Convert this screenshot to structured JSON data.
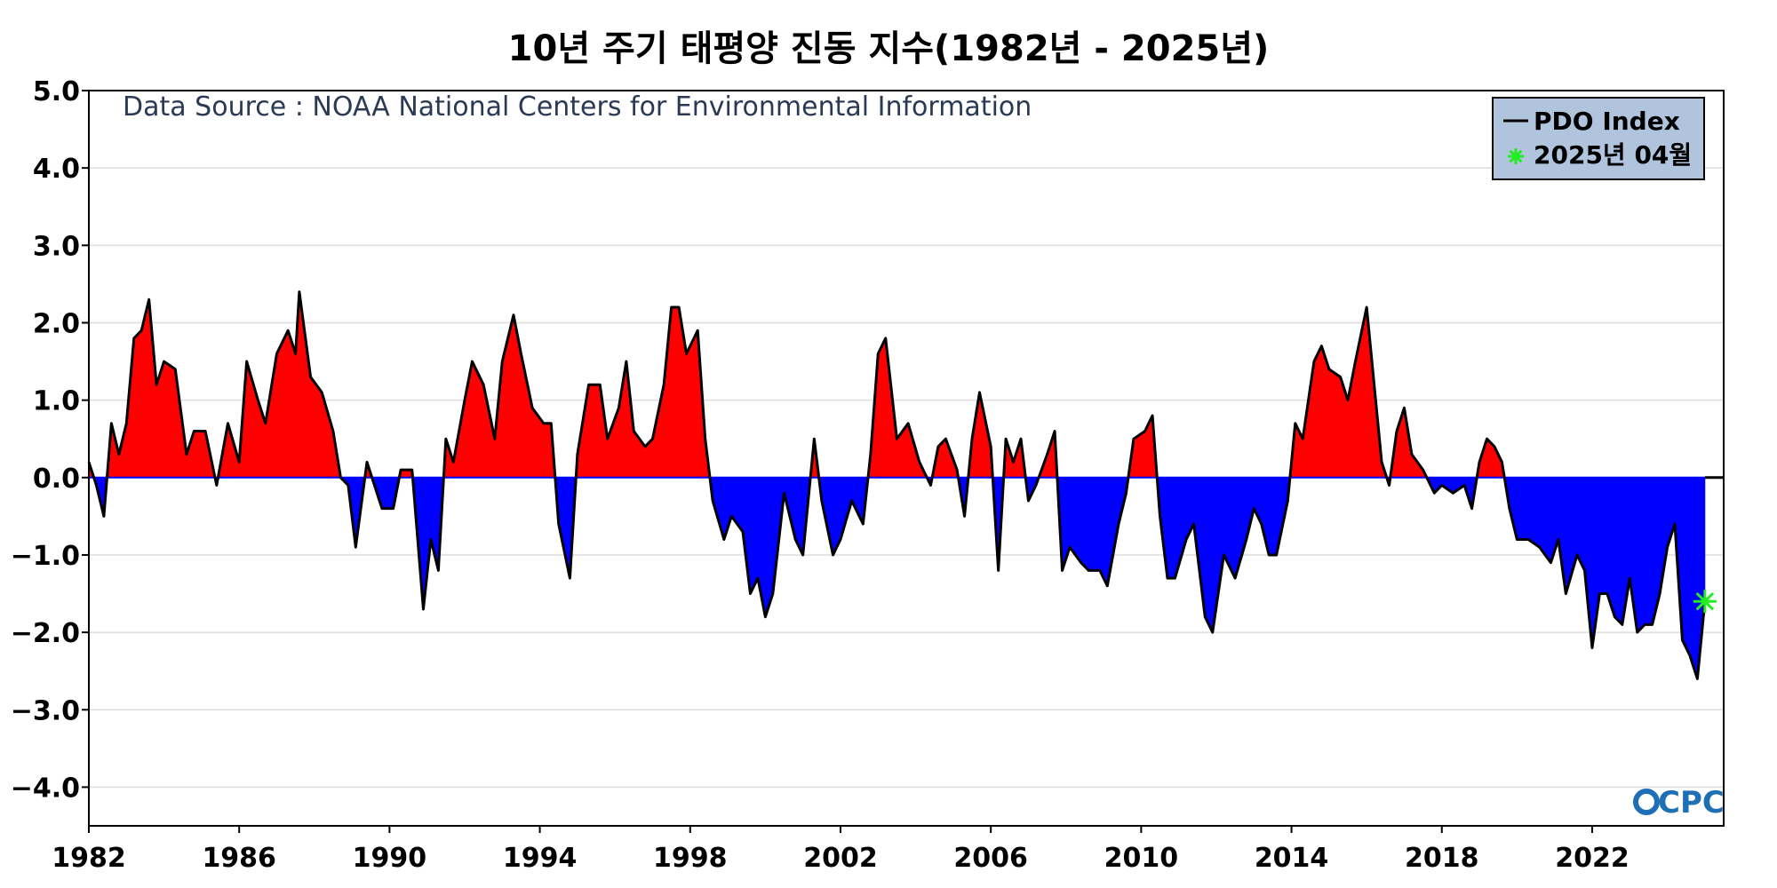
{
  "chart_data": {
    "type": "area",
    "title": "10년 주기 태평양 진동 지수(1982년 - 2025년)",
    "source_note": "Data Source : NOAA National Centers for Environmental Information",
    "xlim": [
      1982,
      2025.5
    ],
    "ylim": [
      -4.5,
      5.0
    ],
    "grid": true,
    "legend_position": "top-right",
    "legend": [
      "PDO Index",
      "2025년 04월"
    ],
    "logo_text": "CPC",
    "x_ticks": [
      1982,
      1986,
      1990,
      1994,
      1998,
      2002,
      2006,
      2010,
      2014,
      2018,
      2022
    ],
    "x_tick_labels": [
      "1982",
      "1986",
      "1990",
      "1994",
      "1998",
      "2002",
      "2006",
      "2010",
      "2014",
      "2018",
      "2022"
    ],
    "y_ticks": [
      5,
      4,
      3,
      2,
      1,
      0,
      -1,
      -2,
      -3,
      -4
    ],
    "y_tick_labels": [
      "5.0",
      "4.0",
      "3.0",
      "2.0",
      "1.0",
      "0.0",
      "−1.0",
      "−2.0",
      "−3.0",
      "−4.0"
    ],
    "colors": {
      "positive": "#ff0000",
      "negative": "#0000ff",
      "line": "#000000",
      "marker": "#22ee22",
      "zero_line": "#000000",
      "grid": "#dddddd"
    },
    "series": [
      {
        "name": "PDO Index",
        "points": [
          [
            1982.0,
            0.2
          ],
          [
            1982.2,
            -0.1
          ],
          [
            1982.4,
            -0.5
          ],
          [
            1982.6,
            0.7
          ],
          [
            1982.8,
            0.3
          ],
          [
            1983.0,
            0.7
          ],
          [
            1983.2,
            1.8
          ],
          [
            1983.4,
            1.9
          ],
          [
            1983.6,
            2.3
          ],
          [
            1983.8,
            1.2
          ],
          [
            1984.0,
            1.5
          ],
          [
            1984.3,
            1.4
          ],
          [
            1984.6,
            0.3
          ],
          [
            1984.8,
            0.6
          ],
          [
            1985.1,
            0.6
          ],
          [
            1985.4,
            -0.1
          ],
          [
            1985.7,
            0.7
          ],
          [
            1986.0,
            0.2
          ],
          [
            1986.2,
            1.5
          ],
          [
            1986.5,
            1.0
          ],
          [
            1986.7,
            0.7
          ],
          [
            1987.0,
            1.6
          ],
          [
            1987.3,
            1.9
          ],
          [
            1987.5,
            1.6
          ],
          [
            1987.6,
            2.4
          ],
          [
            1987.9,
            1.3
          ],
          [
            1988.2,
            1.1
          ],
          [
            1988.5,
            0.6
          ],
          [
            1988.7,
            0.0
          ],
          [
            1988.9,
            -0.1
          ],
          [
            1989.1,
            -0.9
          ],
          [
            1989.4,
            0.2
          ],
          [
            1989.6,
            -0.1
          ],
          [
            1989.8,
            -0.4
          ],
          [
            1990.1,
            -0.4
          ],
          [
            1990.3,
            0.1
          ],
          [
            1990.6,
            0.1
          ],
          [
            1990.9,
            -1.7
          ],
          [
            1991.1,
            -0.8
          ],
          [
            1991.3,
            -1.2
          ],
          [
            1991.5,
            0.5
          ],
          [
            1991.7,
            0.2
          ],
          [
            1992.0,
            1.0
          ],
          [
            1992.2,
            1.5
          ],
          [
            1992.5,
            1.2
          ],
          [
            1992.8,
            0.5
          ],
          [
            1993.0,
            1.5
          ],
          [
            1993.3,
            2.1
          ],
          [
            1993.5,
            1.6
          ],
          [
            1993.8,
            0.9
          ],
          [
            1994.1,
            0.7
          ],
          [
            1994.3,
            0.7
          ],
          [
            1994.5,
            -0.6
          ],
          [
            1994.8,
            -1.3
          ],
          [
            1995.0,
            0.3
          ],
          [
            1995.3,
            1.2
          ],
          [
            1995.6,
            1.2
          ],
          [
            1995.8,
            0.5
          ],
          [
            1996.1,
            0.9
          ],
          [
            1996.3,
            1.5
          ],
          [
            1996.5,
            0.6
          ],
          [
            1996.8,
            0.4
          ],
          [
            1997.0,
            0.5
          ],
          [
            1997.3,
            1.2
          ],
          [
            1997.5,
            2.2
          ],
          [
            1997.7,
            2.2
          ],
          [
            1997.9,
            1.6
          ],
          [
            1998.2,
            1.9
          ],
          [
            1998.4,
            0.5
          ],
          [
            1998.6,
            -0.3
          ],
          [
            1998.9,
            -0.8
          ],
          [
            1999.1,
            -0.5
          ],
          [
            1999.4,
            -0.7
          ],
          [
            1999.6,
            -1.5
          ],
          [
            1999.8,
            -1.3
          ],
          [
            2000.0,
            -1.8
          ],
          [
            2000.2,
            -1.5
          ],
          [
            2000.5,
            -0.2
          ],
          [
            2000.8,
            -0.8
          ],
          [
            2001.0,
            -1.0
          ],
          [
            2001.3,
            0.5
          ],
          [
            2001.5,
            -0.3
          ],
          [
            2001.8,
            -1.0
          ],
          [
            2002.0,
            -0.8
          ],
          [
            2002.3,
            -0.3
          ],
          [
            2002.6,
            -0.6
          ],
          [
            2002.8,
            0.3
          ],
          [
            2003.0,
            1.6
          ],
          [
            2003.2,
            1.8
          ],
          [
            2003.5,
            0.5
          ],
          [
            2003.8,
            0.7
          ],
          [
            2004.1,
            0.2
          ],
          [
            2004.4,
            -0.1
          ],
          [
            2004.6,
            0.4
          ],
          [
            2004.8,
            0.5
          ],
          [
            2005.1,
            0.1
          ],
          [
            2005.3,
            -0.5
          ],
          [
            2005.5,
            0.5
          ],
          [
            2005.7,
            1.1
          ],
          [
            2006.0,
            0.4
          ],
          [
            2006.2,
            -1.2
          ],
          [
            2006.4,
            0.5
          ],
          [
            2006.6,
            0.2
          ],
          [
            2006.8,
            0.5
          ],
          [
            2007.0,
            -0.3
          ],
          [
            2007.2,
            -0.1
          ],
          [
            2007.5,
            0.3
          ],
          [
            2007.7,
            0.6
          ],
          [
            2007.9,
            -1.2
          ],
          [
            2008.1,
            -0.9
          ],
          [
            2008.4,
            -1.1
          ],
          [
            2008.6,
            -1.2
          ],
          [
            2008.9,
            -1.2
          ],
          [
            2009.1,
            -1.4
          ],
          [
            2009.4,
            -0.6
          ],
          [
            2009.6,
            -0.2
          ],
          [
            2009.8,
            0.5
          ],
          [
            2010.1,
            0.6
          ],
          [
            2010.3,
            0.8
          ],
          [
            2010.5,
            -0.5
          ],
          [
            2010.7,
            -1.3
          ],
          [
            2010.9,
            -1.3
          ],
          [
            2011.2,
            -0.8
          ],
          [
            2011.4,
            -0.6
          ],
          [
            2011.7,
            -1.8
          ],
          [
            2011.9,
            -2.0
          ],
          [
            2012.2,
            -1.0
          ],
          [
            2012.5,
            -1.3
          ],
          [
            2012.8,
            -0.8
          ],
          [
            2013.0,
            -0.4
          ],
          [
            2013.2,
            -0.6
          ],
          [
            2013.4,
            -1.0
          ],
          [
            2013.6,
            -1.0
          ],
          [
            2013.9,
            -0.3
          ],
          [
            2014.1,
            0.7
          ],
          [
            2014.3,
            0.5
          ],
          [
            2014.6,
            1.5
          ],
          [
            2014.8,
            1.7
          ],
          [
            2015.0,
            1.4
          ],
          [
            2015.3,
            1.3
          ],
          [
            2015.5,
            1.0
          ],
          [
            2015.7,
            1.5
          ],
          [
            2016.0,
            2.2
          ],
          [
            2016.2,
            1.2
          ],
          [
            2016.4,
            0.2
          ],
          [
            2016.6,
            -0.1
          ],
          [
            2016.8,
            0.6
          ],
          [
            2017.0,
            0.9
          ],
          [
            2017.2,
            0.3
          ],
          [
            2017.5,
            0.1
          ],
          [
            2017.8,
            -0.2
          ],
          [
            2018.0,
            -0.1
          ],
          [
            2018.3,
            -0.2
          ],
          [
            2018.6,
            -0.1
          ],
          [
            2018.8,
            -0.4
          ],
          [
            2019.0,
            0.2
          ],
          [
            2019.2,
            0.5
          ],
          [
            2019.4,
            0.4
          ],
          [
            2019.6,
            0.2
          ],
          [
            2019.8,
            -0.4
          ],
          [
            2020.0,
            -0.8
          ],
          [
            2020.3,
            -0.8
          ],
          [
            2020.6,
            -0.9
          ],
          [
            2020.9,
            -1.1
          ],
          [
            2021.1,
            -0.8
          ],
          [
            2021.3,
            -1.5
          ],
          [
            2021.6,
            -1.0
          ],
          [
            2021.8,
            -1.2
          ],
          [
            2022.0,
            -2.2
          ],
          [
            2022.2,
            -1.5
          ],
          [
            2022.4,
            -1.5
          ],
          [
            2022.6,
            -1.8
          ],
          [
            2022.8,
            -1.9
          ],
          [
            2023.0,
            -1.3
          ],
          [
            2023.2,
            -2.0
          ],
          [
            2023.4,
            -1.9
          ],
          [
            2023.6,
            -1.9
          ],
          [
            2023.8,
            -1.5
          ],
          [
            2024.0,
            -0.9
          ],
          [
            2024.2,
            -0.6
          ],
          [
            2024.4,
            -2.1
          ],
          [
            2024.6,
            -2.3
          ],
          [
            2024.8,
            -2.6
          ],
          [
            2025.0,
            -1.6
          ]
        ]
      }
    ],
    "highlight": {
      "label": "2025년 04월",
      "x": 2025.0,
      "y": -1.6
    }
  }
}
